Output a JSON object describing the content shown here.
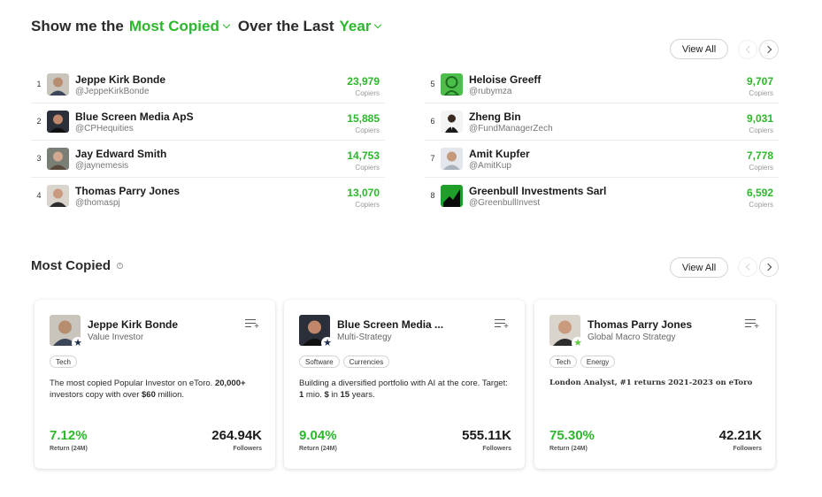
{
  "header": {
    "prefix": "Show me the",
    "metric": "Most Copied",
    "middle": "Over the Last",
    "period": "Year"
  },
  "top_list": {
    "view_all": "View All",
    "left": [
      {
        "rank": "1",
        "name": "Jeppe Kirk Bonde",
        "username": "@JeppeKirkBonde",
        "copiers": "23,979",
        "copiers_label": "Copiers"
      },
      {
        "rank": "2",
        "name": "Blue Screen Media ApS",
        "username": "@CPHequities",
        "copiers": "15,885",
        "copiers_label": "Copiers"
      },
      {
        "rank": "3",
        "name": "Jay Edward Smith",
        "username": "@jaynemesis",
        "copiers": "14,753",
        "copiers_label": "Copiers"
      },
      {
        "rank": "4",
        "name": "Thomas Parry Jones",
        "username": "@thomaspj",
        "copiers": "13,070",
        "copiers_label": "Copiers"
      }
    ],
    "right": [
      {
        "rank": "5",
        "name": "Heloise Greeff",
        "username": "@rubymza",
        "copiers": "9,707",
        "copiers_label": "Copiers"
      },
      {
        "rank": "6",
        "name": "Zheng Bin",
        "username": "@FundManagerZech",
        "copiers": "9,031",
        "copiers_label": "Copiers"
      },
      {
        "rank": "7",
        "name": "Amit Kupfer",
        "username": "@AmitKup",
        "copiers": "7,778",
        "copiers_label": "Copiers"
      },
      {
        "rank": "8",
        "name": "Greenbull Investments Sarl",
        "username": "@GreenbullInvest",
        "copiers": "6,592",
        "copiers_label": "Copiers"
      }
    ]
  },
  "most_copied": {
    "title": "Most Copied",
    "info": "i",
    "view_all": "View All",
    "cards": [
      {
        "name": "Jeppe Kirk Bonde",
        "strategy": "Value Investor",
        "tags": [
          "Tech"
        ],
        "desc_pre": "The most copied Popular Investor on eToro. ",
        "desc_b1": "20,000+",
        "desc_mid": " investors copy with over ",
        "desc_b2": "$60",
        "desc_post": " million.",
        "return": "7.12%",
        "return_label": "Return (24M)",
        "followers": "264.94K",
        "followers_label": "Followers"
      },
      {
        "name": "Blue Screen Media ...",
        "strategy": "Multi-Strategy",
        "tags": [
          "Software",
          "Currencies"
        ],
        "desc_pre": "Building a diversified portfolio with AI at the core. Target: ",
        "desc_b1": "1",
        "desc_mid": " mio. ",
        "desc_b2": "$",
        "desc_mid2": " in ",
        "desc_b3": "15",
        "desc_post": " years.",
        "return": "9.04%",
        "return_label": "Return (24M)",
        "followers": "555.11K",
        "followers_label": "Followers"
      },
      {
        "name": "Thomas Parry Jones",
        "strategy": "Global Macro Strategy",
        "tags": [
          "Tech",
          "Energy"
        ],
        "desc": "London Analyst, #1 returns 2021-2023 on eToro",
        "return": "75.30%",
        "return_label": "Return (24M)",
        "followers": "42.21K",
        "followers_label": "Followers"
      }
    ]
  },
  "colors": {
    "accent_green": "#2db72d",
    "verified_star": "#1e2c4a",
    "star_green": "#5ec93e"
  },
  "icons": [
    "chevron-down-icon",
    "chevron-left-icon",
    "chevron-right-icon",
    "info-icon",
    "star-badge-icon",
    "add-to-list-icon"
  ]
}
